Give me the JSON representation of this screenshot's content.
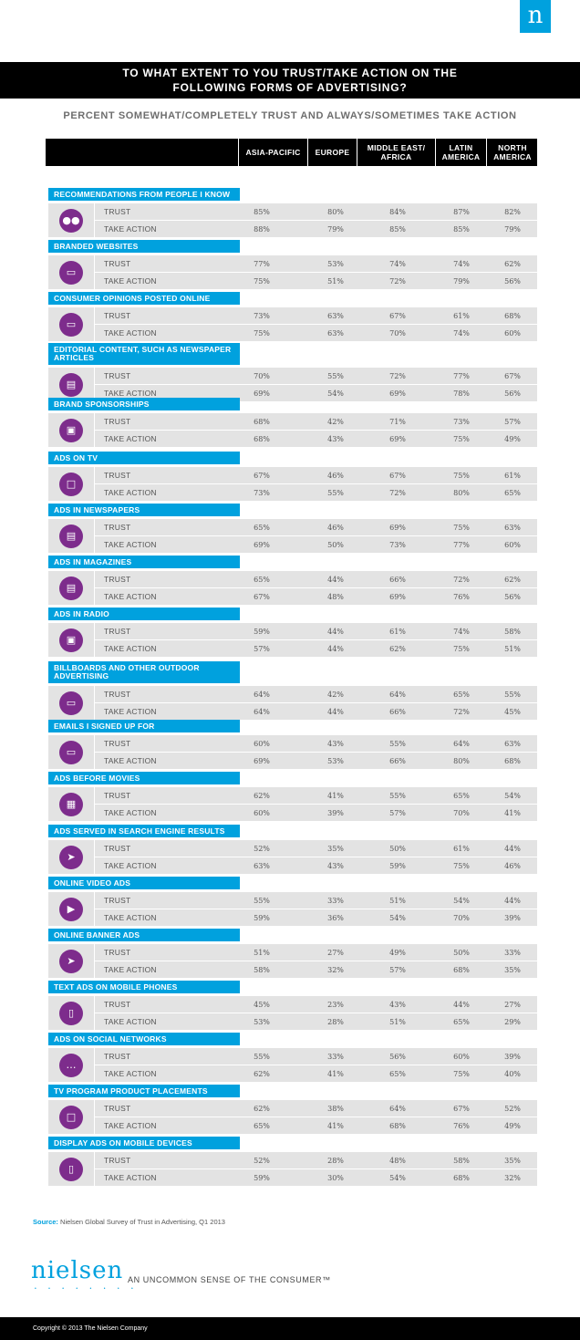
{
  "logo_letter": "n",
  "title": [
    "TO WHAT EXTENT TO YOU TRUST/TAKE ACTION ON THE",
    "FOLLOWING FORMS OF ADVERTISING?"
  ],
  "subtitle": "PERCENT SOMEWHAT/COMPLETELY TRUST AND ALWAYS/SOMETIMES TAKE ACTION",
  "columns": [
    {
      "line1": "ASIA-PACIFIC",
      "line2": ""
    },
    {
      "line1": "EUROPE",
      "line2": ""
    },
    {
      "line1": "MIDDLE EAST/",
      "line2": "AFRICA"
    },
    {
      "line1": "LATIN",
      "line2": "AMERICA"
    },
    {
      "line1": "NORTH",
      "line2": "AMERICA"
    }
  ],
  "row_labels": {
    "trust": "TRUST",
    "action": "TAKE ACTION"
  },
  "categories": [
    {
      "label": "RECOMMENDATIONS FROM PEOPLE I KNOW",
      "icon": "people-icon",
      "trust": [
        "85%",
        "80%",
        "84%",
        "87%",
        "82%"
      ],
      "action": [
        "88%",
        "79%",
        "85%",
        "85%",
        "79%"
      ]
    },
    {
      "label": "BRANDED WEBSITES",
      "icon": "browser-icon",
      "trust": [
        "77%",
        "53%",
        "74%",
        "74%",
        "62%"
      ],
      "action": [
        "75%",
        "51%",
        "72%",
        "79%",
        "56%"
      ]
    },
    {
      "label": "CONSUMER OPINIONS POSTED ONLINE",
      "icon": "laptop-icon",
      "trust": [
        "73%",
        "63%",
        "67%",
        "61%",
        "68%"
      ],
      "action": [
        "75%",
        "63%",
        "70%",
        "74%",
        "60%"
      ]
    },
    {
      "label": "EDITORIAL CONTENT, SUCH AS NEWSPAPER ARTICLES",
      "icon": "newspaper-icon",
      "trust": [
        "70%",
        "55%",
        "72%",
        "77%",
        "67%"
      ],
      "action": [
        "69%",
        "54%",
        "69%",
        "78%",
        "56%"
      ]
    },
    {
      "label": "BRAND SPONSORSHIPS",
      "icon": "trophy-icon",
      "trust": [
        "68%",
        "42%",
        "71%",
        "73%",
        "57%"
      ],
      "action": [
        "68%",
        "43%",
        "69%",
        "75%",
        "49%"
      ]
    },
    {
      "label": "ADS ON TV",
      "icon": "tv-icon",
      "trust": [
        "67%",
        "46%",
        "67%",
        "75%",
        "61%"
      ],
      "action": [
        "73%",
        "55%",
        "72%",
        "80%",
        "65%"
      ]
    },
    {
      "label": "ADS IN NEWSPAPERS",
      "icon": "newspaper-icon",
      "trust": [
        "65%",
        "46%",
        "69%",
        "75%",
        "63%"
      ],
      "action": [
        "69%",
        "50%",
        "73%",
        "77%",
        "60%"
      ]
    },
    {
      "label": "ADS IN MAGAZINES",
      "icon": "magazine-icon",
      "trust": [
        "65%",
        "44%",
        "66%",
        "72%",
        "62%"
      ],
      "action": [
        "67%",
        "48%",
        "69%",
        "76%",
        "56%"
      ]
    },
    {
      "label": "ADS IN RADIO",
      "icon": "radio-icon",
      "trust": [
        "59%",
        "44%",
        "61%",
        "74%",
        "58%"
      ],
      "action": [
        "57%",
        "44%",
        "62%",
        "75%",
        "51%"
      ]
    },
    {
      "label": "BILLBOARDS AND OTHER OUTDOOR ADVERTISING",
      "icon": "billboard-icon",
      "trust": [
        "64%",
        "42%",
        "64%",
        "65%",
        "55%"
      ],
      "action": [
        "64%",
        "44%",
        "66%",
        "72%",
        "45%"
      ]
    },
    {
      "label": "EMAILS I SIGNED UP FOR",
      "icon": "laptop-icon",
      "trust": [
        "60%",
        "43%",
        "55%",
        "64%",
        "63%"
      ],
      "action": [
        "69%",
        "53%",
        "66%",
        "80%",
        "68%"
      ]
    },
    {
      "label": "ADS BEFORE MOVIES",
      "icon": "film-icon",
      "trust": [
        "62%",
        "41%",
        "55%",
        "65%",
        "54%"
      ],
      "action": [
        "60%",
        "39%",
        "57%",
        "70%",
        "41%"
      ]
    },
    {
      "label": "ADS SERVED IN SEARCH ENGINE RESULTS",
      "icon": "cursor-icon",
      "trust": [
        "52%",
        "35%",
        "50%",
        "61%",
        "44%"
      ],
      "action": [
        "63%",
        "43%",
        "59%",
        "75%",
        "46%"
      ]
    },
    {
      "label": "ONLINE VIDEO ADS",
      "icon": "video-icon",
      "trust": [
        "55%",
        "33%",
        "51%",
        "54%",
        "44%"
      ],
      "action": [
        "59%",
        "36%",
        "54%",
        "70%",
        "39%"
      ]
    },
    {
      "label": "ONLINE BANNER ADS",
      "icon": "cursor-icon",
      "trust": [
        "51%",
        "27%",
        "49%",
        "50%",
        "33%"
      ],
      "action": [
        "58%",
        "32%",
        "57%",
        "68%",
        "35%"
      ]
    },
    {
      "label": "TEXT ADS ON MOBILE PHONES",
      "icon": "phone-icon",
      "trust": [
        "45%",
        "23%",
        "43%",
        "44%",
        "27%"
      ],
      "action": [
        "53%",
        "28%",
        "51%",
        "65%",
        "29%"
      ]
    },
    {
      "label": "ADS ON SOCIAL NETWORKS",
      "icon": "chat-icon",
      "trust": [
        "55%",
        "33%",
        "56%",
        "60%",
        "39%"
      ],
      "action": [
        "62%",
        "41%",
        "65%",
        "75%",
        "40%"
      ]
    },
    {
      "label": "TV PROGRAM PRODUCT PLACEMENTS",
      "icon": "tv-icon",
      "trust": [
        "62%",
        "38%",
        "64%",
        "67%",
        "52%"
      ],
      "action": [
        "65%",
        "41%",
        "68%",
        "76%",
        "49%"
      ]
    },
    {
      "label": "DISPLAY ADS ON MOBILE DEVICES",
      "icon": "phone-icon",
      "trust": [
        "52%",
        "28%",
        "48%",
        "58%",
        "35%"
      ],
      "action": [
        "59%",
        "30%",
        "54%",
        "68%",
        "32%"
      ]
    }
  ],
  "source_label": "Source:",
  "source_text": "Nielsen Global Survey of Trust in Advertising, Q1 2013",
  "brand": "nielsen",
  "tagline": "AN UNCOMMON SENSE OF THE CONSUMER™",
  "copyright": "Copyright © 2013 The Nielsen Company",
  "colors": {
    "accent": "#00a1de",
    "icon": "#7d2c8c",
    "row": "#e3e3e3",
    "bar": "#000000"
  }
}
